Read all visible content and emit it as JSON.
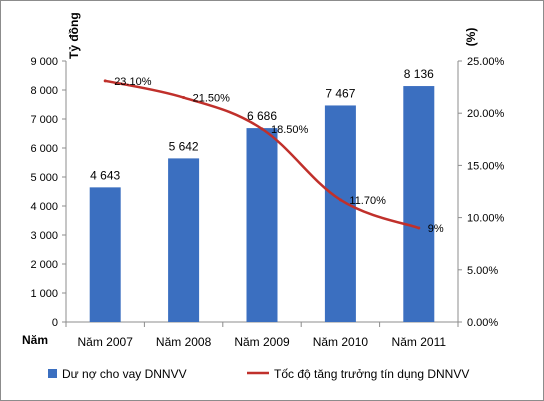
{
  "chart_data": {
    "type": "bar",
    "categories": [
      "Năm 2007",
      "Năm 2008",
      "Năm 2009",
      "Năm 2010",
      "Năm 2011"
    ],
    "series": [
      {
        "name": "Dư nợ cho vay DNNVV",
        "kind": "bar",
        "axis": "left",
        "color": "#3b6fc0",
        "values": [
          4643,
          5642,
          6686,
          7467,
          8136
        ],
        "labels": [
          "4 643",
          "5 642",
          "6 686",
          "7 467",
          "8 136"
        ]
      },
      {
        "name": "Tốc độ tăng trưởng tín dụng DNNVV",
        "kind": "line",
        "axis": "right",
        "color": "#c0302b",
        "values": [
          23.1,
          21.5,
          18.5,
          11.7,
          9
        ],
        "labels": [
          "23.10%",
          "21.50%",
          "18.50%",
          "11.70%",
          "9%"
        ]
      }
    ],
    "y_left": {
      "title": "Tỷ đồng",
      "ylim": [
        0,
        9000
      ],
      "ticks": [
        0,
        1000,
        2000,
        3000,
        4000,
        5000,
        6000,
        7000,
        8000,
        9000
      ],
      "tick_labels": [
        "0",
        "1 000",
        "2 000",
        "3 000",
        "4 000",
        "5 000",
        "6 000",
        "7 000",
        "8 000",
        "9 000"
      ]
    },
    "y_right": {
      "title": "(%)",
      "ylim": [
        0,
        25
      ],
      "ticks": [
        0,
        5,
        10,
        15,
        20,
        25
      ],
      "tick_labels": [
        "0.00%",
        "5.00%",
        "10.00%",
        "15.00%",
        "20.00%",
        "25.00%"
      ]
    },
    "xlabel": "Năm",
    "grid": false,
    "legend_position": "bottom"
  }
}
